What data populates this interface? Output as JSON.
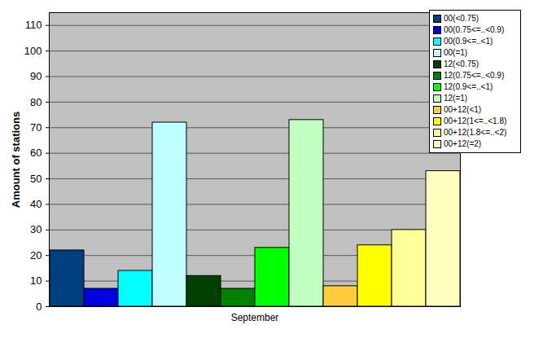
{
  "chart_data": {
    "type": "bar",
    "y_label": "Amount of stations",
    "categories": [
      "September"
    ],
    "series": [
      {
        "name": "00(<0.75)",
        "color": "#004080",
        "values": [
          22
        ]
      },
      {
        "name": "00(0.75<=..<0.9)",
        "color": "#0000e0",
        "values": [
          7
        ]
      },
      {
        "name": "00(0.9<=..<1)",
        "color": "#00ffff",
        "values": [
          14
        ]
      },
      {
        "name": "00(=1)",
        "color": "#c0ffff",
        "values": [
          72
        ]
      },
      {
        "name": "12(<0.75)",
        "color": "#004000",
        "values": [
          12
        ]
      },
      {
        "name": "12(0.75<=..<0.9)",
        "color": "#008000",
        "values": [
          7
        ]
      },
      {
        "name": "12(0.9<=..<1)",
        "color": "#00ff00",
        "values": [
          23
        ]
      },
      {
        "name": "12(=1)",
        "color": "#c0ffc0",
        "values": [
          73
        ]
      },
      {
        "name": "00+12(<1)",
        "color": "#ffcc40",
        "values": [
          8
        ]
      },
      {
        "name": "00+12(1<=..<1.8)",
        "color": "#ffff00",
        "values": [
          24
        ]
      },
      {
        "name": "00+12(1.8<=..<2)",
        "color": "#ffff99",
        "values": [
          30
        ]
      },
      {
        "name": "00+12(=2)",
        "color": "#ffffc0",
        "values": [
          53
        ]
      }
    ],
    "ylim": [
      0,
      115
    ],
    "yticks": [
      0,
      10,
      20,
      30,
      40,
      50,
      60,
      70,
      80,
      90,
      100,
      110
    ],
    "grid": true,
    "legend": "top-right"
  }
}
